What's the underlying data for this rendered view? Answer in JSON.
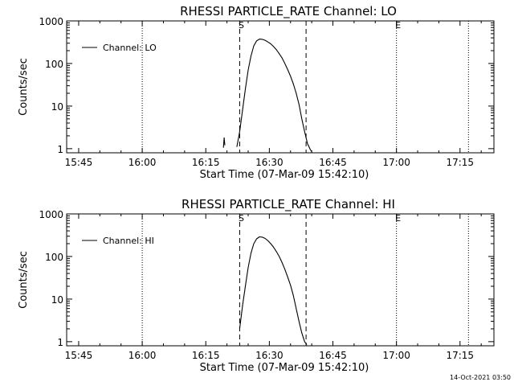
{
  "footer": {
    "timestamp": "14-Oct-2021 03:50"
  },
  "chart_data": [
    {
      "type": "line",
      "title": "RHESSI PARTICLE_RATE Channel: LO",
      "xlabel": "Start Time (07-Mar-09 15:42:10)",
      "ylabel": "Counts/sec",
      "yscale": "log",
      "xlim": [
        "15:42:10",
        "17:23:00"
      ],
      "ylim": [
        0.8,
        1000
      ],
      "x_ticks": [
        "15:45",
        "16:00",
        "16:15",
        "16:30",
        "16:45",
        "17:00",
        "17:15"
      ],
      "y_ticks": [
        "1",
        "10",
        "100",
        "1000"
      ],
      "legend": {
        "label": "Channel: LO",
        "placement": "top-left"
      },
      "markers": [
        {
          "label": "S",
          "time": "16:23:00",
          "style": "dashed"
        },
        {
          "label": "",
          "time": "16:38:40",
          "style": "dashed"
        },
        {
          "label": "",
          "time": "16:00:00",
          "style": "dotted"
        },
        {
          "label": "E",
          "time": "17:00:00",
          "style": "dotted"
        },
        {
          "label": "",
          "time": "17:17:00",
          "style": "dotted"
        }
      ],
      "series": [
        {
          "name": "Channel: LO",
          "x": [
            "16:19:00",
            "16:19:10",
            "16:19:20",
            "16:19:30",
            "16:19:40",
            "16:19:50",
            "16:20:00",
            "16:22:20",
            "16:23:00",
            "16:23:40",
            "16:24:20",
            "16:25:00",
            "16:25:40",
            "16:26:20",
            "16:27:00",
            "16:27:40",
            "16:28:20",
            "16:29:00",
            "16:29:40",
            "16:30:20",
            "16:31:00",
            "16:31:40",
            "16:32:20",
            "16:33:00",
            "16:33:40",
            "16:34:20",
            "16:35:00",
            "16:35:40",
            "16:36:20",
            "16:37:00",
            "16:37:40",
            "16:38:20",
            "16:39:00",
            "16:39:40",
            "16:40:00"
          ],
          "y": [
            null,
            1.05,
            1.8,
            1.2,
            null,
            null,
            null,
            1.1,
            2.5,
            8,
            25,
            70,
            150,
            260,
            340,
            375,
            370,
            350,
            320,
            290,
            250,
            210,
            170,
            135,
            100,
            72,
            50,
            33,
            20,
            11,
            5,
            2.5,
            1.3,
            0.95,
            0.85
          ],
          "color": "#000000"
        }
      ]
    },
    {
      "type": "line",
      "title": "RHESSI PARTICLE_RATE Channel: HI",
      "xlabel": "Start Time (07-Mar-09 15:42:10)",
      "ylabel": "Counts/sec",
      "yscale": "log",
      "xlim": [
        "15:42:10",
        "17:23:00"
      ],
      "ylim": [
        0.8,
        1000
      ],
      "x_ticks": [
        "15:45",
        "16:00",
        "16:15",
        "16:30",
        "16:45",
        "17:00",
        "17:15"
      ],
      "y_ticks": [
        "1",
        "10",
        "100",
        "1000"
      ],
      "legend": {
        "label": "Channel: HI",
        "placement": "top-left"
      },
      "markers": [
        {
          "label": "S",
          "time": "16:23:00",
          "style": "dashed"
        },
        {
          "label": "",
          "time": "16:38:40",
          "style": "dashed"
        },
        {
          "label": "",
          "time": "16:00:00",
          "style": "dotted"
        },
        {
          "label": "E",
          "time": "17:00:00",
          "style": "dotted"
        },
        {
          "label": "",
          "time": "17:17:00",
          "style": "dotted"
        }
      ],
      "series": [
        {
          "name": "Channel: HI",
          "x": [
            "16:23:00",
            "16:23:40",
            "16:24:20",
            "16:25:00",
            "16:25:40",
            "16:26:20",
            "16:27:00",
            "16:27:40",
            "16:28:20",
            "16:29:00",
            "16:29:40",
            "16:30:20",
            "16:31:00",
            "16:31:40",
            "16:32:20",
            "16:33:00",
            "16:33:40",
            "16:34:20",
            "16:35:00",
            "16:35:40",
            "16:36:20",
            "16:37:00",
            "16:37:40",
            "16:38:20",
            "16:38:50"
          ],
          "y": [
            2,
            7,
            20,
            55,
            120,
            200,
            260,
            290,
            285,
            265,
            235,
            200,
            165,
            130,
            100,
            72,
            50,
            33,
            21,
            12,
            6,
            3,
            1.6,
            1.0,
            0.85
          ],
          "color": "#000000"
        }
      ]
    }
  ]
}
